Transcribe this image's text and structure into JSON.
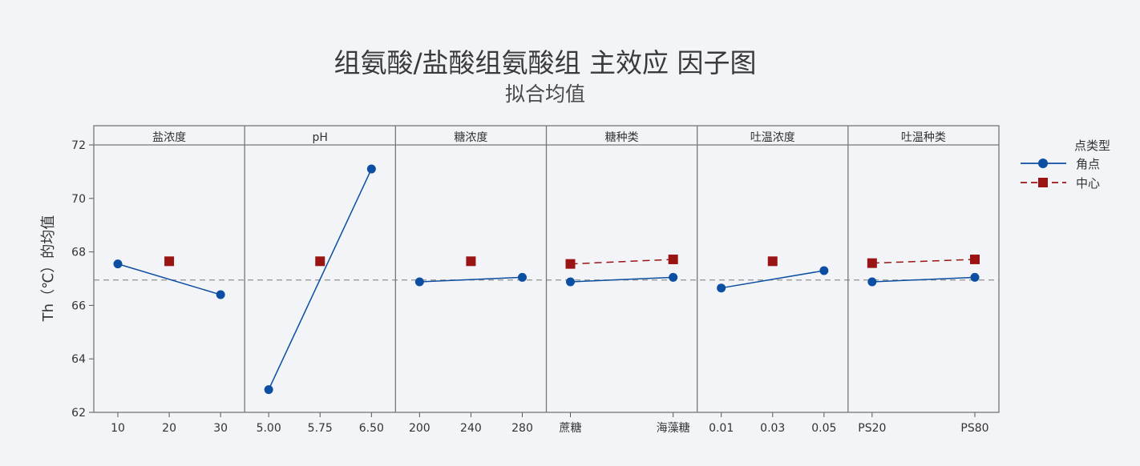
{
  "chart_data": {
    "type": "line",
    "title": "组氨酸/盐酸组氨酸组 主效应 因子图",
    "subtitle": "拟合均值",
    "ylabel": "Th（℃）的均值",
    "ylim": [
      62,
      72
    ],
    "yticks": [
      62,
      64,
      66,
      68,
      70,
      72
    ],
    "reference_line": 66.95,
    "grid": false,
    "legend": {
      "title": "点类型",
      "placement": "right",
      "entries": [
        {
          "name": "角点",
          "color": "#0b4ea2",
          "marker": "circle",
          "line": "solid"
        },
        {
          "name": "中心",
          "color": "#9b1414",
          "marker": "square",
          "line": "dashed"
        }
      ]
    },
    "panels": [
      {
        "label": "盐浓度",
        "categories": [
          "10",
          "20",
          "30"
        ],
        "corner": [
          {
            "x": "10",
            "y": 67.55
          },
          {
            "x": "30",
            "y": 66.4
          }
        ],
        "center": [
          {
            "x": "20",
            "y": 67.65
          }
        ]
      },
      {
        "label": "pH",
        "categories": [
          "5.00",
          "5.75",
          "6.50"
        ],
        "corner": [
          {
            "x": "5.00",
            "y": 62.85
          },
          {
            "x": "6.50",
            "y": 71.1
          }
        ],
        "center": [
          {
            "x": "5.75",
            "y": 67.65
          }
        ]
      },
      {
        "label": "糖浓度",
        "categories": [
          "200",
          "240",
          "280"
        ],
        "corner": [
          {
            "x": "200",
            "y": 66.88
          },
          {
            "x": "280",
            "y": 67.05
          }
        ],
        "center": [
          {
            "x": "240",
            "y": 67.65
          }
        ]
      },
      {
        "label": "糖种类",
        "categories": [
          "蔗糖",
          "海藻糖"
        ],
        "corner": [
          {
            "x": "蔗糖",
            "y": 66.88
          },
          {
            "x": "海藻糖",
            "y": 67.05
          }
        ],
        "center": [
          {
            "x": "蔗糖",
            "y": 67.55
          },
          {
            "x": "海藻糖",
            "y": 67.72
          }
        ]
      },
      {
        "label": "吐温浓度",
        "categories": [
          "0.01",
          "0.03",
          "0.05"
        ],
        "corner": [
          {
            "x": "0.01",
            "y": 66.65
          },
          {
            "x": "0.05",
            "y": 67.3
          }
        ],
        "center": [
          {
            "x": "0.03",
            "y": 67.65
          }
        ]
      },
      {
        "label": "吐温种类",
        "categories": [
          "PS20",
          "PS80"
        ],
        "corner": [
          {
            "x": "PS20",
            "y": 66.88
          },
          {
            "x": "PS80",
            "y": 67.05
          }
        ],
        "center": [
          {
            "x": "PS20",
            "y": 67.58
          },
          {
            "x": "PS80",
            "y": 67.72
          }
        ]
      }
    ]
  }
}
